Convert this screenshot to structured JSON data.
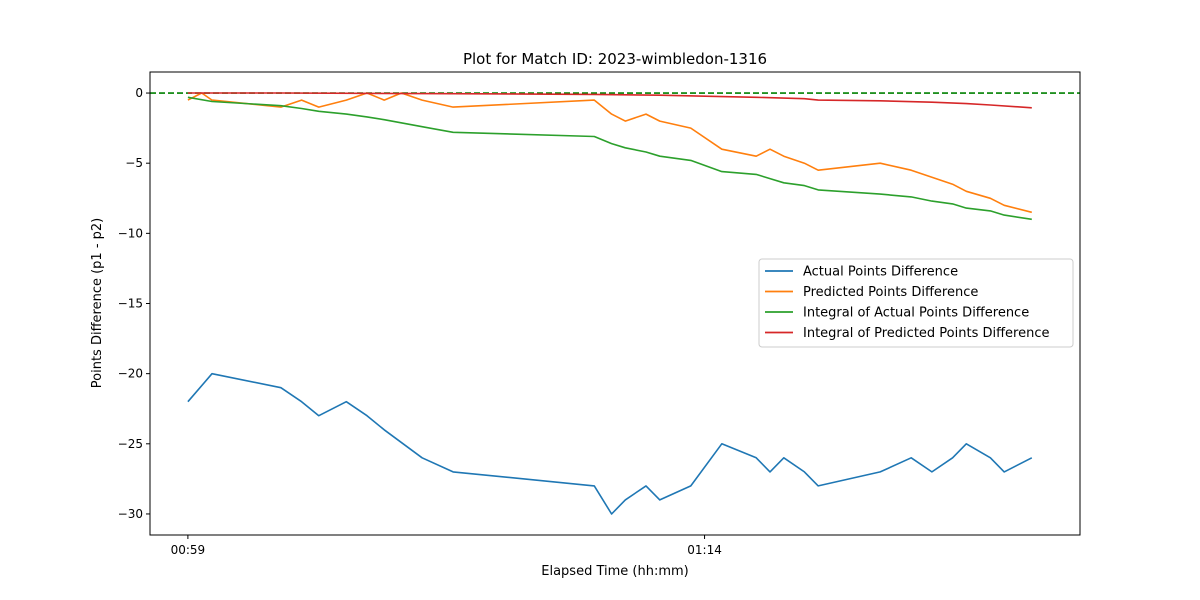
{
  "chart_data": {
    "type": "line",
    "title": "Plot for Match ID: 2023-wimbledon-1316",
    "xlabel": "Elapsed Time (hh:mm)",
    "ylabel": "Points Difference (p1 - p2)",
    "xlim": [
      -1.1,
      25.9
    ],
    "ylim": [
      -31.5,
      1.5
    ],
    "xticks": [
      {
        "x": 0,
        "label": "00:59"
      },
      {
        "x": 15,
        "label": "01:14"
      }
    ],
    "yticks": [
      0,
      -5,
      -10,
      -15,
      -20,
      -25,
      -30
    ],
    "reference_line": {
      "y": 0,
      "color": "#008000",
      "style": "dashed"
    },
    "legend_position": "center-right",
    "grid": false,
    "series": [
      {
        "name": "Actual Points Difference",
        "color": "#1f77b4",
        "points": [
          [
            0.0,
            -22
          ],
          [
            0.7,
            -20
          ],
          [
            2.7,
            -21
          ],
          [
            3.3,
            -22
          ],
          [
            3.8,
            -23
          ],
          [
            4.6,
            -22
          ],
          [
            5.2,
            -23
          ],
          [
            5.7,
            -24
          ],
          [
            6.8,
            -26
          ],
          [
            7.7,
            -27
          ],
          [
            11.8,
            -28
          ],
          [
            12.3,
            -30
          ],
          [
            12.7,
            -29
          ],
          [
            13.3,
            -28
          ],
          [
            13.7,
            -29
          ],
          [
            14.6,
            -28
          ],
          [
            15.5,
            -25
          ],
          [
            16.5,
            -26
          ],
          [
            16.9,
            -27
          ],
          [
            17.3,
            -26
          ],
          [
            17.9,
            -27
          ],
          [
            18.3,
            -28
          ],
          [
            20.1,
            -27
          ],
          [
            21.0,
            -26
          ],
          [
            21.6,
            -27
          ],
          [
            22.2,
            -26
          ],
          [
            22.6,
            -25
          ],
          [
            23.3,
            -26
          ],
          [
            23.7,
            -27
          ],
          [
            24.5,
            -26
          ]
        ]
      },
      {
        "name": "Predicted Points Difference",
        "color": "#ff7f0e",
        "points": [
          [
            0.0,
            -0.5
          ],
          [
            0.4,
            0.0
          ],
          [
            0.7,
            -0.5
          ],
          [
            2.7,
            -1.0
          ],
          [
            3.3,
            -0.5
          ],
          [
            3.8,
            -1.0
          ],
          [
            4.6,
            -0.5
          ],
          [
            5.2,
            0.0
          ],
          [
            5.7,
            -0.5
          ],
          [
            6.2,
            0.0
          ],
          [
            6.8,
            -0.5
          ],
          [
            7.7,
            -1.0
          ],
          [
            11.8,
            -0.5
          ],
          [
            12.3,
            -1.5
          ],
          [
            12.7,
            -2.0
          ],
          [
            13.3,
            -1.5
          ],
          [
            13.7,
            -2.0
          ],
          [
            14.6,
            -2.5
          ],
          [
            15.5,
            -4.0
          ],
          [
            16.5,
            -4.5
          ],
          [
            16.9,
            -4.0
          ],
          [
            17.3,
            -4.5
          ],
          [
            17.9,
            -5.0
          ],
          [
            18.3,
            -5.5
          ],
          [
            20.1,
            -5.0
          ],
          [
            21.0,
            -5.5
          ],
          [
            21.6,
            -6.0
          ],
          [
            22.2,
            -6.5
          ],
          [
            22.6,
            -7.0
          ],
          [
            23.3,
            -7.5
          ],
          [
            23.7,
            -8.0
          ],
          [
            24.5,
            -8.5
          ]
        ]
      },
      {
        "name": "Integral of Actual Points Difference",
        "color": "#2ca02c",
        "points": [
          [
            0.0,
            -0.3
          ],
          [
            0.7,
            -0.6
          ],
          [
            2.7,
            -0.9
          ],
          [
            3.3,
            -1.1
          ],
          [
            3.8,
            -1.3
          ],
          [
            4.6,
            -1.5
          ],
          [
            5.2,
            -1.7
          ],
          [
            5.7,
            -1.9
          ],
          [
            6.8,
            -2.4
          ],
          [
            7.7,
            -2.8
          ],
          [
            11.8,
            -3.1
          ],
          [
            12.3,
            -3.6
          ],
          [
            12.7,
            -3.9
          ],
          [
            13.3,
            -4.2
          ],
          [
            13.7,
            -4.5
          ],
          [
            14.6,
            -4.8
          ],
          [
            15.5,
            -5.6
          ],
          [
            16.5,
            -5.8
          ],
          [
            16.9,
            -6.1
          ],
          [
            17.3,
            -6.4
          ],
          [
            17.9,
            -6.6
          ],
          [
            18.3,
            -6.9
          ],
          [
            20.1,
            -7.2
          ],
          [
            21.0,
            -7.4
          ],
          [
            21.6,
            -7.7
          ],
          [
            22.2,
            -7.9
          ],
          [
            22.6,
            -8.2
          ],
          [
            23.3,
            -8.4
          ],
          [
            23.7,
            -8.7
          ],
          [
            24.5,
            -9.0
          ]
        ]
      },
      {
        "name": "Integral of Predicted Points Difference",
        "color": "#d62728",
        "points": [
          [
            0.0,
            0.0
          ],
          [
            2.7,
            0.0
          ],
          [
            7.7,
            -0.05
          ],
          [
            11.8,
            -0.1
          ],
          [
            13.7,
            -0.15
          ],
          [
            15.5,
            -0.25
          ],
          [
            16.5,
            -0.3
          ],
          [
            17.9,
            -0.4
          ],
          [
            18.3,
            -0.5
          ],
          [
            20.1,
            -0.55
          ],
          [
            21.6,
            -0.65
          ],
          [
            22.6,
            -0.75
          ],
          [
            23.3,
            -0.85
          ],
          [
            24.5,
            -1.05
          ]
        ]
      }
    ]
  }
}
